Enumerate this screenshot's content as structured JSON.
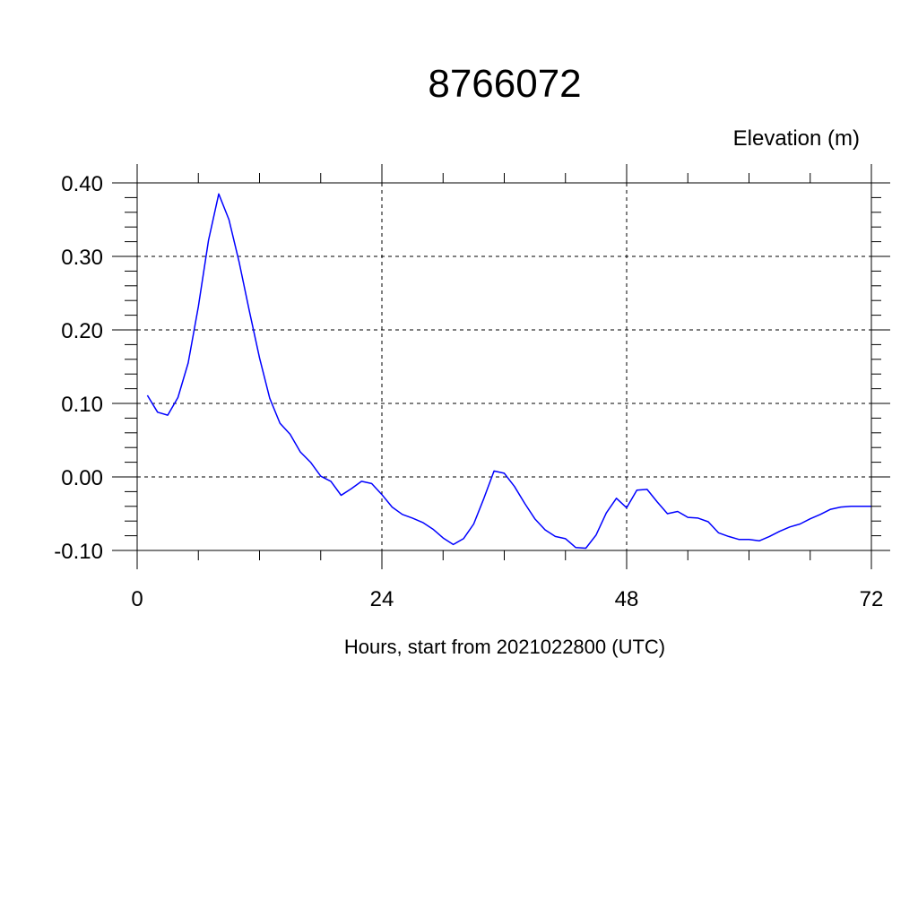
{
  "chart_data": {
    "type": "line",
    "title": "8766072",
    "ylabel": "Elevation (m)",
    "xlabel": "Hours, start from 2021022800 (UTC)",
    "xlim": [
      0,
      72
    ],
    "ylim": [
      -0.1,
      0.4
    ],
    "x_ticks": [
      0,
      24,
      48,
      72
    ],
    "x_tick_labels": [
      "0",
      "24",
      "48",
      "72"
    ],
    "y_ticks": [
      -0.1,
      0.0,
      0.1,
      0.2,
      0.3,
      0.4
    ],
    "y_tick_labels": [
      "-0.10",
      "0.00",
      "0.10",
      "0.20",
      "0.30",
      "0.40"
    ],
    "grid": true,
    "series": [
      {
        "color": "#0000ff",
        "x": [
          1,
          2,
          3,
          4,
          5,
          6,
          7,
          8,
          9,
          10,
          11,
          12,
          13,
          14,
          15,
          16,
          17,
          18,
          19,
          20,
          21,
          22,
          23,
          24,
          25,
          26,
          27,
          28,
          29,
          30,
          31,
          32,
          33,
          34,
          35,
          36,
          37,
          38,
          39,
          40,
          41,
          42,
          43,
          44,
          45,
          46,
          47,
          48,
          49,
          50,
          51,
          52,
          53,
          54,
          55,
          56,
          57,
          58,
          59,
          60,
          61,
          62,
          63,
          64,
          65,
          66,
          67,
          68,
          69,
          70,
          71,
          72
        ],
        "y": [
          0.111,
          0.088,
          0.084,
          0.108,
          0.155,
          0.232,
          0.322,
          0.385,
          0.35,
          0.292,
          0.226,
          0.162,
          0.107,
          0.073,
          0.058,
          0.034,
          0.02,
          0.001,
          -0.006,
          -0.025,
          -0.016,
          -0.006,
          -0.009,
          -0.024,
          -0.041,
          -0.051,
          -0.056,
          -0.062,
          -0.071,
          -0.083,
          -0.092,
          -0.084,
          -0.064,
          -0.029,
          0.008,
          0.005,
          -0.013,
          -0.036,
          -0.057,
          -0.072,
          -0.081,
          -0.084,
          -0.096,
          -0.097,
          -0.079,
          -0.049,
          -0.029,
          -0.042,
          -0.018,
          -0.017,
          -0.034,
          -0.05,
          -0.047,
          -0.055,
          -0.056,
          -0.061,
          -0.076,
          -0.081,
          -0.085,
          -0.085,
          -0.087,
          -0.081,
          -0.074,
          -0.068,
          -0.064,
          -0.057,
          -0.051,
          -0.044,
          -0.041,
          -0.04,
          -0.04,
          -0.04
        ]
      }
    ]
  }
}
